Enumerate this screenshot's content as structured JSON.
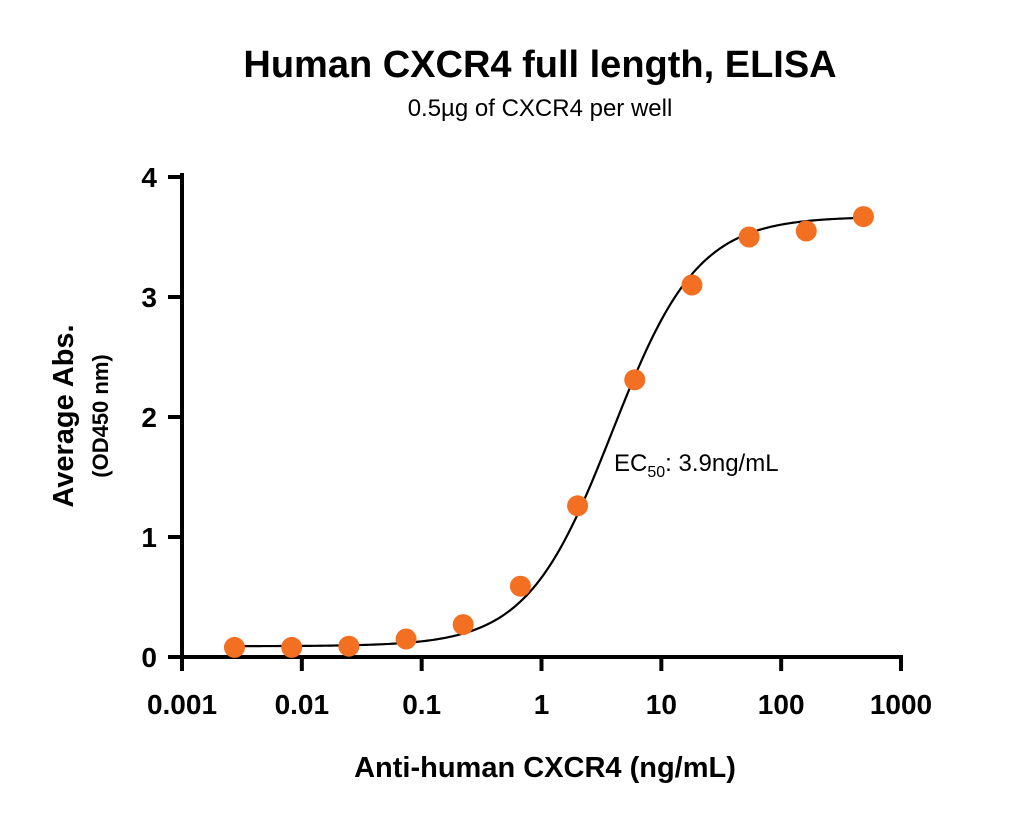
{
  "chart_data": {
    "type": "scatter",
    "title": "Human CXCR4 full length, ELISA",
    "subtitle": "0.5µg of CXCR4 per well",
    "xlabel": "Anti-human CXCR4 (ng/mL)",
    "ylabel": "Average Abs.",
    "ylabel_sub": "(OD450 nm)",
    "x_scale": "log",
    "xlim": [
      0.001,
      1000
    ],
    "ylim": [
      0,
      4
    ],
    "x_ticks": [
      0.001,
      0.01,
      0.1,
      1,
      10,
      100,
      1000
    ],
    "x_tick_labels": [
      "0.001",
      "0.01",
      "0.1",
      "1",
      "10",
      "100",
      "1000"
    ],
    "y_ticks": [
      0,
      1,
      2,
      3,
      4
    ],
    "y_tick_labels": [
      "0",
      "1",
      "2",
      "3",
      "4"
    ],
    "grid": false,
    "marker_color": "#f36f21",
    "line_color": "#000000",
    "series": [
      {
        "x": [
          0.00274,
          0.00823,
          0.0247,
          0.0741,
          0.222,
          0.667,
          2.0,
          6.0,
          18.0,
          54.0,
          162,
          486
        ],
        "y": [
          0.08,
          0.08,
          0.09,
          0.15,
          0.27,
          0.59,
          1.26,
          2.31,
          3.1,
          3.5,
          3.55,
          3.67
        ]
      }
    ],
    "fit": {
      "type": "4PL",
      "bottom": 0.09,
      "top": 3.67,
      "ec50": 3.9,
      "hill": 1.22
    },
    "annotation": {
      "prefix": "EC",
      "subscript": "50",
      "suffix": ": 3.9ng/mL"
    }
  }
}
